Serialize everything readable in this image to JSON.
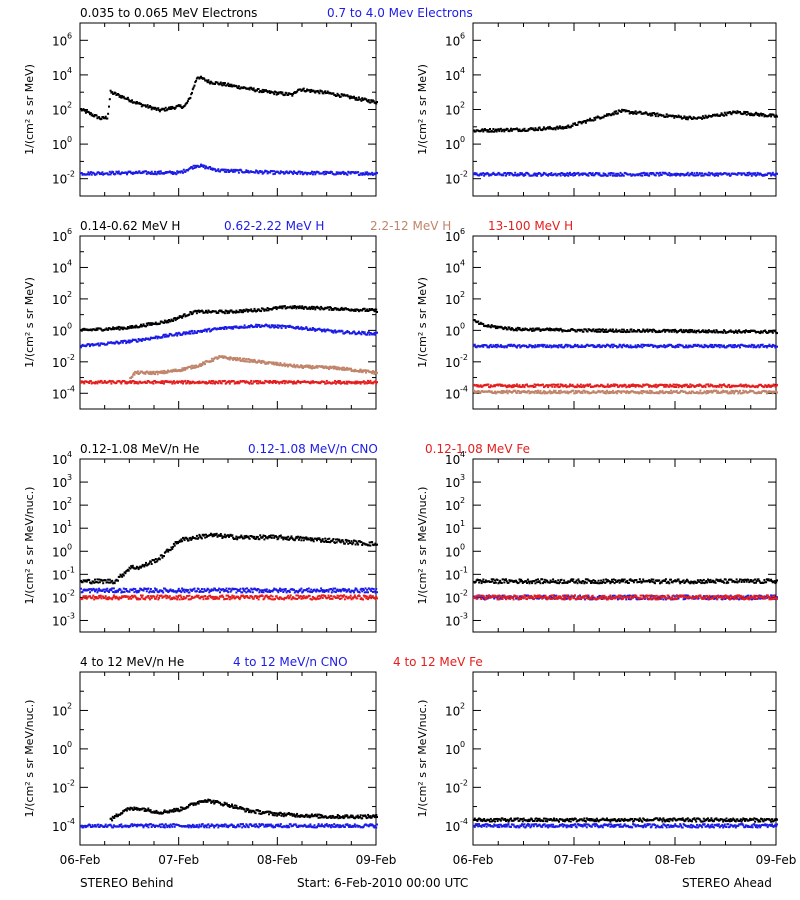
{
  "colors": {
    "black": "#000000",
    "blue": "#1c1ce6",
    "tan": "#c0846a",
    "red": "#e41e1e"
  },
  "footer": {
    "left": "STEREO Behind",
    "center": "Start:  6-Feb-2010 00:00 UTC",
    "right": "STEREO Ahead"
  },
  "x_ticks": [
    "06-Feb",
    "07-Feb",
    "08-Feb",
    "09-Feb"
  ],
  "legends": [
    [
      {
        "text": "0.035 to 0.065 MeV Electrons",
        "color": "black"
      },
      {
        "text": "0.7 to 4.0 Mev Electrons",
        "color": "blue"
      }
    ],
    [
      {
        "text": "0.14-0.62 MeV H",
        "color": "black"
      },
      {
        "text": "0.62-2.22 MeV H",
        "color": "blue"
      },
      {
        "text": "2.2-12 MeV H",
        "color": "tan"
      },
      {
        "text": "13-100 MeV H",
        "color": "red"
      }
    ],
    [
      {
        "text": "0.12-1.08 MeV/n He",
        "color": "black"
      },
      {
        "text": "0.12-1.08 MeV/n CNO",
        "color": "blue"
      },
      {
        "text": "0.12-1.08 MeV Fe",
        "color": "red"
      }
    ],
    [
      {
        "text": "4 to 12 MeV/n He",
        "color": "black"
      },
      {
        "text": "4 to 12 MeV/n CNO",
        "color": "blue"
      },
      {
        "text": "4 to 12 MeV Fe",
        "color": "red"
      }
    ]
  ],
  "chart_data": [
    {
      "type": "scatter",
      "row": 0,
      "panel": "left",
      "ylabel": "1/(cm² s sr MeV)",
      "ylog": true,
      "ylim_exp": [
        -3,
        7
      ],
      "ytick_exps": [
        -2,
        0,
        2,
        4,
        6
      ],
      "xlim": [
        0,
        3
      ],
      "series": [
        {
          "color": "black",
          "points": [
            [
              0,
              100
            ],
            [
              0.2,
              30
            ],
            [
              0.27,
              35
            ],
            [
              0.3,
              1000
            ],
            [
              0.4,
              600
            ],
            [
              0.6,
              200
            ],
            [
              0.8,
              90
            ],
            [
              1.0,
              150
            ],
            [
              1.05,
              150
            ],
            [
              1.1,
              400
            ],
            [
              1.18,
              8000
            ],
            [
              1.3,
              4000
            ],
            [
              1.6,
              2000
            ],
            [
              1.9,
              1000
            ],
            [
              2.15,
              700
            ],
            [
              2.2,
              1500
            ],
            [
              2.5,
              900
            ],
            [
              3.0,
              260
            ]
          ]
        },
        {
          "color": "blue",
          "points": [
            [
              0,
              0.02
            ],
            [
              0.5,
              0.022
            ],
            [
              1.0,
              0.022
            ],
            [
              1.18,
              0.06
            ],
            [
              1.4,
              0.03
            ],
            [
              2.0,
              0.022
            ],
            [
              3.0,
              0.02
            ]
          ]
        }
      ]
    },
    {
      "type": "scatter",
      "row": 0,
      "panel": "right",
      "ylabel": "1/(cm² s sr MeV)",
      "ylog": true,
      "ylim_exp": [
        -3,
        7
      ],
      "ytick_exps": [
        -2,
        0,
        2,
        4,
        6
      ],
      "xlim": [
        0,
        3
      ],
      "series": [
        {
          "color": "black",
          "points": [
            [
              0,
              6
            ],
            [
              0.5,
              7
            ],
            [
              0.9,
              9
            ],
            [
              1.2,
              30
            ],
            [
              1.45,
              80
            ],
            [
              1.8,
              50
            ],
            [
              2.2,
              30
            ],
            [
              2.6,
              70
            ],
            [
              3.0,
              40
            ]
          ]
        },
        {
          "color": "blue",
          "points": [
            [
              0,
              0.018
            ],
            [
              1.5,
              0.018
            ],
            [
              3.0,
              0.018
            ]
          ]
        }
      ]
    },
    {
      "type": "scatter",
      "row": 1,
      "panel": "left",
      "ylabel": "1/(cm² s sr MeV)",
      "ylog": true,
      "ylim_exp": [
        -5,
        6
      ],
      "ytick_exps": [
        -4,
        -2,
        0,
        2,
        4,
        6
      ],
      "xlim": [
        0,
        3
      ],
      "series": [
        {
          "color": "black",
          "points": [
            [
              0,
              1
            ],
            [
              0.5,
              1.5
            ],
            [
              0.9,
              4
            ],
            [
              1.15,
              15
            ],
            [
              1.5,
              15
            ],
            [
              1.8,
              20
            ],
            [
              2.1,
              30
            ],
            [
              2.5,
              25
            ],
            [
              3.0,
              18
            ]
          ]
        },
        {
          "color": "blue",
          "points": [
            [
              0,
              0.1
            ],
            [
              0.5,
              0.2
            ],
            [
              1.0,
              0.6
            ],
            [
              1.5,
              1.5
            ],
            [
              1.8,
              2
            ],
            [
              2.2,
              1.5
            ],
            [
              2.6,
              0.8
            ],
            [
              3.0,
              0.6
            ]
          ]
        },
        {
          "color": "tan",
          "points": [
            [
              0.5,
              0.001
            ],
            [
              0.55,
              0.002
            ],
            [
              0.8,
              0.002
            ],
            [
              1.0,
              0.003
            ],
            [
              1.2,
              0.006
            ],
            [
              1.4,
              0.02
            ],
            [
              1.7,
              0.012
            ],
            [
              2.2,
              0.005
            ],
            [
              2.6,
              0.004
            ],
            [
              3.0,
              0.002
            ]
          ]
        },
        {
          "color": "red",
          "points": [
            [
              0,
              0.0005
            ],
            [
              1.5,
              0.0005
            ],
            [
              3.0,
              0.0005
            ]
          ]
        }
      ]
    },
    {
      "type": "scatter",
      "row": 1,
      "panel": "right",
      "ylabel": "1/(cm² s sr MeV)",
      "ylog": true,
      "ylim_exp": [
        -5,
        6
      ],
      "ytick_exps": [
        -4,
        -2,
        0,
        2,
        4,
        6
      ],
      "xlim": [
        0,
        3
      ],
      "series": [
        {
          "color": "black",
          "points": [
            [
              0,
              4
            ],
            [
              0.1,
              2
            ],
            [
              0.4,
              1.2
            ],
            [
              1.0,
              1
            ],
            [
              2.0,
              0.9
            ],
            [
              3.0,
              0.8
            ]
          ]
        },
        {
          "color": "blue",
          "points": [
            [
              0,
              0.1
            ],
            [
              1.5,
              0.1
            ],
            [
              3.0,
              0.1
            ]
          ]
        },
        {
          "color": "tan",
          "points": [
            [
              0,
              0.00012
            ],
            [
              1.5,
              0.00012
            ],
            [
              3.0,
              0.00012
            ]
          ]
        },
        {
          "color": "red",
          "points": [
            [
              0,
              0.0003
            ],
            [
              1.5,
              0.0003
            ],
            [
              3.0,
              0.0003
            ]
          ]
        }
      ]
    },
    {
      "type": "scatter",
      "row": 2,
      "panel": "left",
      "ylabel": "1/(cm² s sr MeV/nuc.)",
      "ylog": true,
      "ylim_exp": [
        -3.5,
        4
      ],
      "ytick_exps": [
        -3,
        -2,
        -1,
        0,
        1,
        2,
        3,
        4
      ],
      "xlim": [
        0,
        3
      ],
      "series": [
        {
          "color": "black",
          "points": [
            [
              0,
              0.05
            ],
            [
              0.35,
              0.05
            ],
            [
              0.5,
              0.2
            ],
            [
              0.6,
              0.2
            ],
            [
              0.8,
              0.5
            ],
            [
              1.0,
              3
            ],
            [
              1.3,
              5
            ],
            [
              1.6,
              4
            ],
            [
              2.0,
              4
            ],
            [
              2.5,
              3
            ],
            [
              3.0,
              2
            ]
          ]
        },
        {
          "color": "blue",
          "points": [
            [
              0,
              0.02
            ],
            [
              1.5,
              0.02
            ],
            [
              3.0,
              0.02
            ]
          ]
        },
        {
          "color": "red",
          "points": [
            [
              0,
              0.01
            ],
            [
              1.5,
              0.01
            ],
            [
              3.0,
              0.01
            ]
          ]
        }
      ]
    },
    {
      "type": "scatter",
      "row": 2,
      "panel": "right",
      "ylabel": "1/(cm² s sr MeV/nuc.)",
      "ylog": true,
      "ylim_exp": [
        -3.5,
        4
      ],
      "ytick_exps": [
        -3,
        -2,
        -1,
        0,
        1,
        2,
        3,
        4
      ],
      "xlim": [
        0,
        3
      ],
      "series": [
        {
          "color": "black",
          "points": [
            [
              0,
              0.05
            ],
            [
              1.5,
              0.05
            ],
            [
              3.0,
              0.05
            ]
          ]
        },
        {
          "color": "blue",
          "points": [
            [
              0,
              0.01
            ],
            [
              1.5,
              0.01
            ],
            [
              3.0,
              0.01
            ]
          ]
        },
        {
          "color": "red",
          "points": [
            [
              0,
              0.01
            ],
            [
              1.5,
              0.01
            ],
            [
              3.0,
              0.01
            ]
          ]
        }
      ]
    },
    {
      "type": "scatter",
      "row": 3,
      "panel": "left",
      "ylabel": "1/(cm² s sr MeV/nuc.)",
      "ylog": true,
      "ylim_exp": [
        -5,
        4
      ],
      "ytick_exps": [
        -4,
        -2,
        0,
        2
      ],
      "xlim": [
        0,
        3
      ],
      "series": [
        {
          "color": "black",
          "points": [
            [
              0.3,
              0.0002
            ],
            [
              0.45,
              0.0007
            ],
            [
              0.6,
              0.0008
            ],
            [
              0.8,
              0.0005
            ],
            [
              1.0,
              0.0007
            ],
            [
              1.25,
              0.0022
            ],
            [
              1.5,
              0.0012
            ],
            [
              1.7,
              0.0006
            ],
            [
              2.0,
              0.0004
            ],
            [
              2.5,
              0.0003
            ],
            [
              3.0,
              0.0003
            ]
          ]
        },
        {
          "color": "blue",
          "points": [
            [
              0,
              0.0001
            ],
            [
              1.5,
              0.0001
            ],
            [
              3.0,
              0.0001
            ]
          ]
        },
        {
          "color": "red",
          "points": []
        }
      ]
    },
    {
      "type": "scatter",
      "row": 3,
      "panel": "right",
      "ylabel": "1/(cm² s sr MeV/nuc.)",
      "ylog": true,
      "ylim_exp": [
        -5,
        4
      ],
      "ytick_exps": [
        -4,
        -2,
        0,
        2
      ],
      "xlim": [
        0,
        3
      ],
      "series": [
        {
          "color": "black",
          "points": [
            [
              0,
              0.0002
            ],
            [
              1.5,
              0.0002
            ],
            [
              3.0,
              0.0002
            ]
          ]
        },
        {
          "color": "blue",
          "points": [
            [
              0,
              0.0001
            ],
            [
              1.5,
              0.0001
            ],
            [
              3.0,
              0.0001
            ]
          ]
        },
        {
          "color": "red",
          "points": []
        }
      ]
    }
  ]
}
